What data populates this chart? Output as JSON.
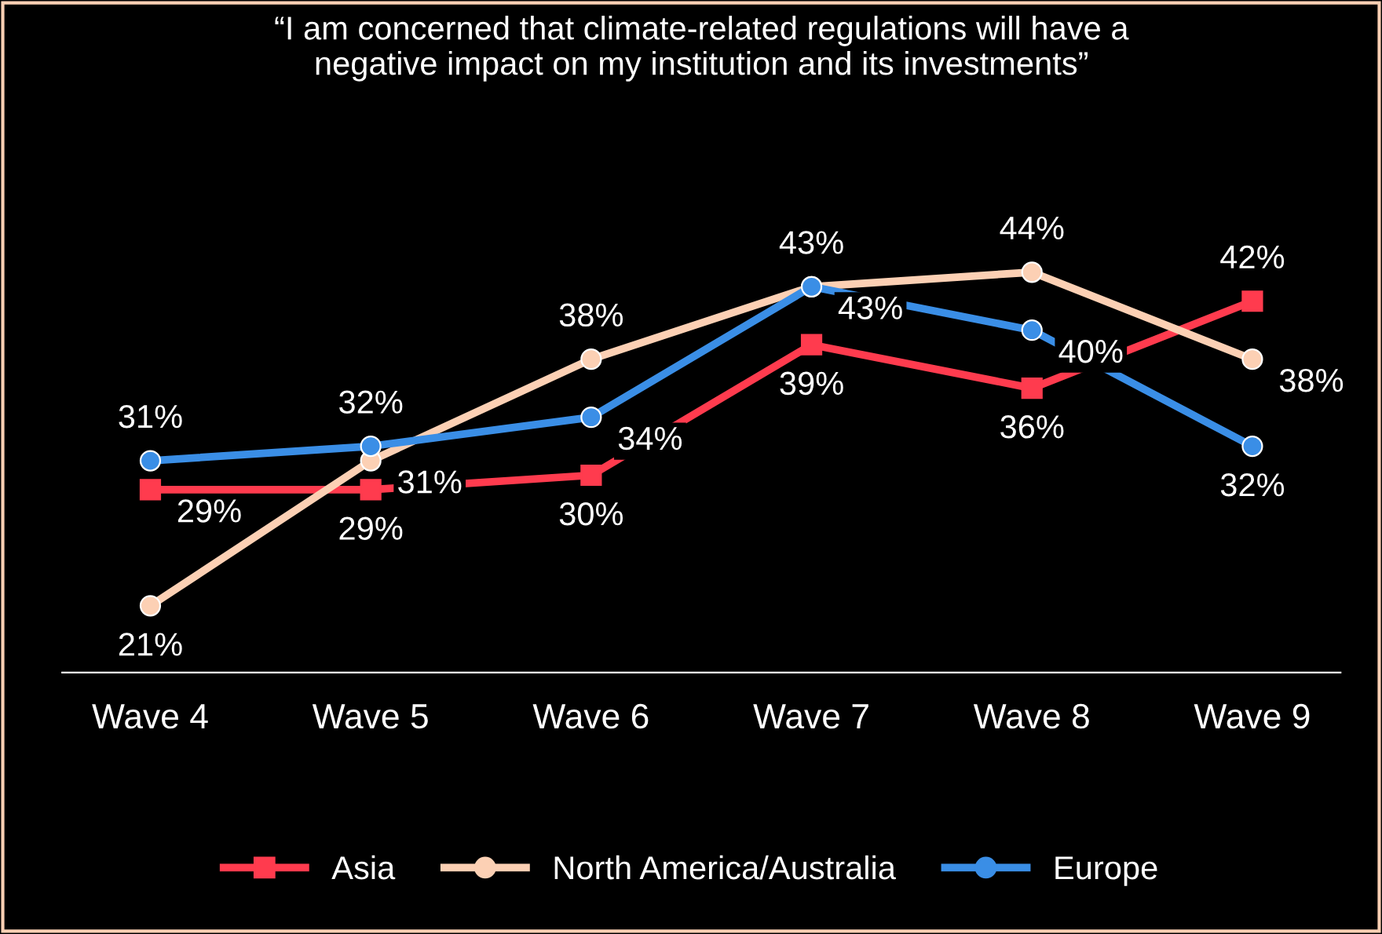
{
  "chart_data": {
    "type": "line",
    "title": "“I am concerned that climate-related regulations will have a\nnegative impact on my institution and its investments”",
    "categories": [
      "Wave 4",
      "Wave 5",
      "Wave 6",
      "Wave 7",
      "Wave 8",
      "Wave 9"
    ],
    "series": [
      {
        "name": "Asia",
        "color": "#ff3b4e",
        "marker": "square",
        "values": [
          29,
          29,
          30,
          39,
          36,
          42
        ],
        "value_labels": [
          "29%",
          "29%",
          "30%",
          "39%",
          "36%",
          "42%"
        ]
      },
      {
        "name": "North America/Australia",
        "color": "#fcd0b4",
        "marker": "circle",
        "values": [
          21,
          31,
          38,
          43,
          44,
          38
        ],
        "value_labels": [
          "21%",
          "31%",
          "38%",
          "43%",
          "44%",
          "38%"
        ]
      },
      {
        "name": "Europe",
        "color": "#3a8ee6",
        "marker": "circle",
        "values": [
          31,
          32,
          34,
          43,
          40,
          32
        ],
        "value_labels": [
          "31%",
          "32%",
          "34%",
          "43%",
          "40%",
          "32%"
        ]
      }
    ],
    "tick_labels": "x",
    "grid": false,
    "legend": "bottom",
    "line_style": "solid"
  }
}
